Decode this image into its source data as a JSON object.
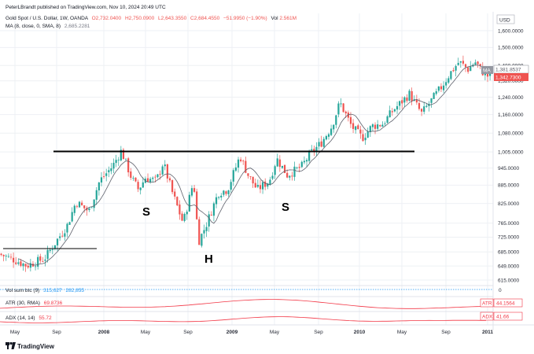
{
  "header": {
    "published": "PeterLBrandt published on TradingView.com, Nov 10, 2024 20:49 UTC",
    "symbol": "Gold Spot / U.S. Dollar, 1W, OANDA",
    "open": "O2,732.0400",
    "high": "H2,750.0900",
    "low": "L2,643.3550",
    "close": "C2,684.4550",
    "change": "−51.9950 (−1.90%)",
    "vol": "Vol",
    "vol_value": "2.561M",
    "ma_label": "MA (8, close, 0, SMA, 8)",
    "ma_value": "2,685.2281"
  },
  "currency": "USD",
  "footer": {
    "brand": "TradingView"
  },
  "colors": {
    "up": "#26a69a",
    "down": "#ef5350",
    "ma": "#5d606b",
    "atr": "#f23645",
    "grid": "#eef0f4",
    "text": "#131722"
  },
  "chart_data": {
    "type": "candlestick",
    "y_scale": "log",
    "ylim": [
      600,
      1700
    ],
    "y_ticks": [
      "1,600.0000",
      "1,500.0000",
      "1,400.0000",
      "1,320.0000",
      "1,240.0000",
      "1,160.0000",
      "1,080.0000",
      "1,005.0000",
      "945.0000",
      "885.0000",
      "825.0000",
      "765.0000",
      "725.0000",
      "685.0000",
      "649.0000",
      "615.0000"
    ],
    "x_ticks": [
      "May",
      "Sep",
      "2008",
      "May",
      "Sep",
      "2009",
      "May",
      "Sep",
      "2010",
      "May",
      "Sep",
      "2011"
    ],
    "x_range": [
      "2007-04-01",
      "2011-01-31"
    ],
    "last_price_label": "1,381.8537",
    "ma_label_tag": "MA",
    "ma_price_label": "1,342.7300",
    "annotations": [
      "S",
      "H",
      "S"
    ],
    "neckline_price": 1003,
    "left_line_price": 693,
    "price_path": [
      {
        "date": "2007-04-01",
        "price": 680
      },
      {
        "date": "2007-05-15",
        "price": 665
      },
      {
        "date": "2007-06-20",
        "price": 650
      },
      {
        "date": "2007-08-10",
        "price": 668
      },
      {
        "date": "2007-09-10",
        "price": 710
      },
      {
        "date": "2007-10-15",
        "price": 760
      },
      {
        "date": "2007-11-08",
        "price": 830
      },
      {
        "date": "2007-12-15",
        "price": 800
      },
      {
        "date": "2008-01-15",
        "price": 900
      },
      {
        "date": "2008-02-20",
        "price": 950
      },
      {
        "date": "2008-03-17",
        "price": 1010
      },
      {
        "date": "2008-04-15",
        "price": 910
      },
      {
        "date": "2008-05-05",
        "price": 870
      },
      {
        "date": "2008-05-25",
        "price": 910
      },
      {
        "date": "2008-06-25",
        "price": 900
      },
      {
        "date": "2008-07-15",
        "price": 965
      },
      {
        "date": "2008-08-10",
        "price": 860
      },
      {
        "date": "2008-09-10",
        "price": 765
      },
      {
        "date": "2008-10-10",
        "price": 900
      },
      {
        "date": "2008-10-24",
        "price": 712
      },
      {
        "date": "2008-11-15",
        "price": 760
      },
      {
        "date": "2008-12-20",
        "price": 860
      },
      {
        "date": "2009-01-15",
        "price": 870
      },
      {
        "date": "2009-02-20",
        "price": 990
      },
      {
        "date": "2009-03-15",
        "price": 920
      },
      {
        "date": "2009-04-10",
        "price": 870
      },
      {
        "date": "2009-05-15",
        "price": 900
      },
      {
        "date": "2009-06-05",
        "price": 980
      },
      {
        "date": "2009-07-05",
        "price": 920
      },
      {
        "date": "2009-08-15",
        "price": 950
      },
      {
        "date": "2009-09-10",
        "price": 1000
      },
      {
        "date": "2009-10-10",
        "price": 1040
      },
      {
        "date": "2009-11-10",
        "price": 1110
      },
      {
        "date": "2009-12-03",
        "price": 1215
      },
      {
        "date": "2010-01-05",
        "price": 1110
      },
      {
        "date": "2010-02-05",
        "price": 1060
      },
      {
        "date": "2010-03-05",
        "price": 1110
      },
      {
        "date": "2010-04-05",
        "price": 1120
      },
      {
        "date": "2010-05-05",
        "price": 1180
      },
      {
        "date": "2010-06-20",
        "price": 1255
      },
      {
        "date": "2010-07-25",
        "price": 1165
      },
      {
        "date": "2010-08-20",
        "price": 1220
      },
      {
        "date": "2010-09-20",
        "price": 1290
      },
      {
        "date": "2010-10-15",
        "price": 1360
      },
      {
        "date": "2010-11-09",
        "price": 1420
      },
      {
        "date": "2010-12-05",
        "price": 1380
      },
      {
        "date": "2010-12-25",
        "price": 1420
      },
      {
        "date": "2011-01-25",
        "price": 1345
      }
    ],
    "indicators": [
      {
        "name": "Vol sum btc (9)",
        "values": [
          "315,627",
          "282,855"
        ],
        "axis_value": "0"
      },
      {
        "name": "ATR (30, RMA)",
        "value": "69.8736",
        "tag": "ATR",
        "tag_value": "44.1564"
      },
      {
        "name": "ADX (14, 14)",
        "value": "55.72",
        "tag": "ADX",
        "tag_value": "41.66"
      }
    ]
  }
}
